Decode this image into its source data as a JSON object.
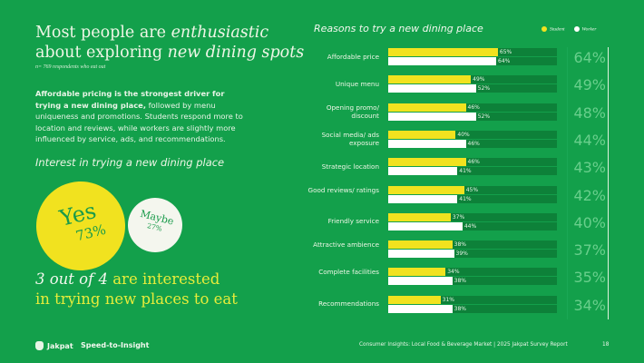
{
  "title": {
    "part1": "Most people are ",
    "em1": "enthusiastic",
    "part2": "about exploring ",
    "em2": "new dining spots"
  },
  "note": "n= 769 respondents who eat out",
  "description": {
    "bold": "Affordable pricing is the strongest driver for trying a new dining place,",
    "rest": " followed by menu uniqueness and promotions. Students respond more to location and reviews, while workers are slightly more influenced by service, ads, and recommendations."
  },
  "interest": {
    "heading": "Interest in trying a new dining place",
    "yes_label": "Yes",
    "yes_value": "73%",
    "maybe_label": "Maybe",
    "maybe_value": "27%"
  },
  "headline": {
    "em": "3 out of 4",
    "rest1": " are interested",
    "rest2": "in trying new places to eat"
  },
  "brand": {
    "name": "Jakpat",
    "tagline": "Speed-to-Insight"
  },
  "footer": {
    "text": "Consumer Insights: Local Food & Beverage Market | 2025 Jakpat Survey Report",
    "page": "18"
  },
  "colors": {
    "background": "#13a04b",
    "student": "#f1e21f",
    "worker": "#ffffff",
    "track": "#0d8139",
    "total": "#69cf8c"
  },
  "chart_data": {
    "type": "bar",
    "orientation": "horizontal",
    "title": "Reasons to try a new dining place",
    "xlim": [
      0,
      100
    ],
    "categories": [
      "Affordable price",
      "Unique menu",
      "Opening promo/ discount",
      "Social media/ ads exposure",
      "Strategic location",
      "Good reviews/ ratings",
      "Friendly service",
      "Attractive ambience",
      "Complete facilities",
      "Recommendations"
    ],
    "series": [
      {
        "name": "Student",
        "values": [
          65,
          49,
          46,
          40,
          46,
          45,
          37,
          38,
          34,
          31
        ]
      },
      {
        "name": "Worker",
        "values": [
          64,
          52,
          52,
          46,
          41,
          41,
          44,
          39,
          38,
          38
        ]
      }
    ],
    "totals": [
      64,
      49,
      48,
      44,
      43,
      42,
      40,
      37,
      35,
      34
    ],
    "legend": "top-right"
  }
}
